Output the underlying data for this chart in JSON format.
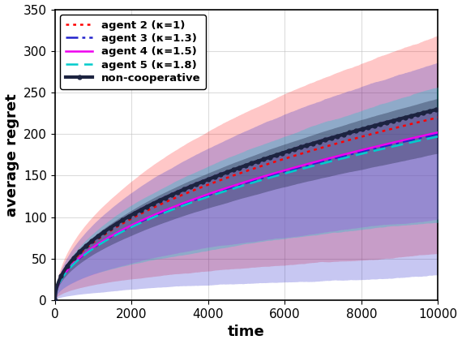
{
  "xlabel": "time",
  "ylabel": "average regret",
  "xlim": [
    0,
    10000
  ],
  "ylim": [
    0,
    350
  ],
  "xticks": [
    0,
    2000,
    4000,
    6000,
    8000,
    10000
  ],
  "yticks": [
    0,
    50,
    100,
    150,
    200,
    250,
    300,
    350
  ],
  "agents": [
    {
      "label": "agent 2 (κ=1)",
      "color": "#ff0000",
      "linestyle": "dotted",
      "linewidth": 1.8,
      "mean_final": 220,
      "band_upper_final": 320,
      "band_lower_final": 60,
      "alpha": 0.22,
      "zorder": 2
    },
    {
      "label": "agent 3 (κ=1.3)",
      "color": "#2222cc",
      "linestyle": "dashdot",
      "linewidth": 1.8,
      "mean_final": 200,
      "band_upper_final": 290,
      "band_lower_final": 30,
      "alpha": 0.25,
      "zorder": 3
    },
    {
      "label": "agent 4 (κ=1.5)",
      "color": "#ee00ee",
      "linestyle": "solid",
      "linewidth": 1.8,
      "mean_final": 202,
      "band_upper_final": 240,
      "band_lower_final": 100,
      "alpha": 0.28,
      "zorder": 4
    },
    {
      "label": "agent 5 (κ=1.8)",
      "color": "#00cccc",
      "linestyle": "dashed",
      "linewidth": 1.8,
      "mean_final": 197,
      "band_upper_final": 255,
      "band_lower_final": 100,
      "alpha": 0.28,
      "zorder": 5
    }
  ],
  "noncooperative": {
    "label": "non-cooperative",
    "color": "#1c2340",
    "linewidth": 3.0,
    "mean_final": 230,
    "band_upper_final": 242,
    "band_lower_final": 175,
    "alpha": 0.35,
    "zorder": 6
  },
  "n_points": 500,
  "background_color": "#ffffff",
  "grid_color": "#bbbbbb",
  "grid_alpha": 0.5,
  "legend_fontsize": 9.5,
  "axis_fontsize": 13,
  "tick_fontsize": 11
}
